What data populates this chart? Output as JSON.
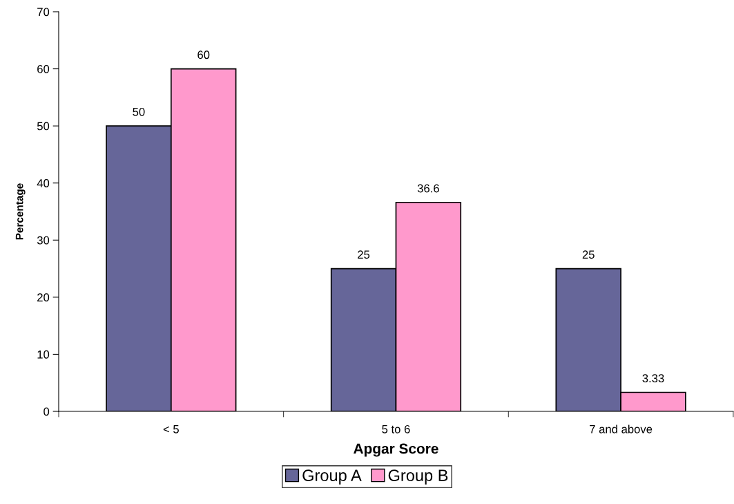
{
  "chart_data": {
    "type": "bar",
    "xlabel": "Apgar Score",
    "ylabel": "Percentage",
    "categories": [
      "< 5",
      "5 to 6",
      "7 and above"
    ],
    "series": [
      {
        "name": "Group A",
        "color": "#666699",
        "values": [
          50,
          25,
          25
        ]
      },
      {
        "name": "Group B",
        "color": "#ff99cc",
        "values": [
          60,
          36.6,
          3.33
        ]
      }
    ],
    "ylim": [
      0,
      70
    ],
    "yticks": [
      0,
      10,
      20,
      30,
      40,
      50,
      60,
      70
    ],
    "data_labels": true,
    "legend": "bottom",
    "grid": false
  }
}
